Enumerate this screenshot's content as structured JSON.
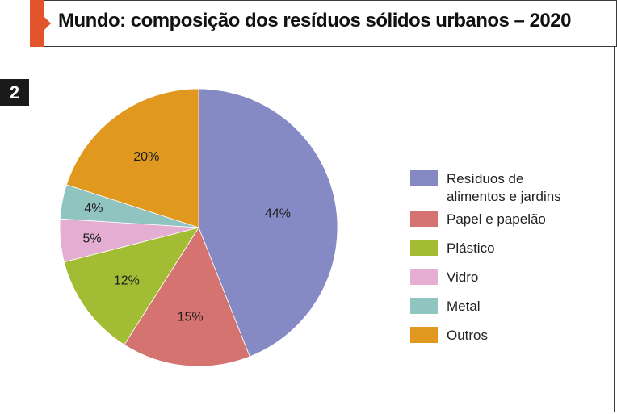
{
  "figure_number": "2",
  "title": "Mundo: composição dos resíduos sólidos urbanos – 2020",
  "colors": {
    "accent": "#e2542b",
    "residuos": "#8589c4",
    "papel": "#d4736f",
    "plastico": "#a2bc34",
    "vidro": "#e3aed1",
    "metal": "#8fc4c0",
    "outros": "#e0981e"
  },
  "chart_data": {
    "type": "pie",
    "title": "Mundo: composição dos resíduos sólidos urbanos – 2020",
    "unit": "%",
    "legend_position": "right",
    "slices": [
      {
        "label": "Resíduos de alimentos e jardins",
        "legend_lines": [
          "Resíduos de",
          "alimentos e jardins"
        ],
        "value": 44,
        "value_label": "44%",
        "color": "#8589c4"
      },
      {
        "label": "Papel e papelão",
        "legend_lines": [
          "Papel e papelão"
        ],
        "value": 15,
        "value_label": "15%",
        "color": "#d4736f"
      },
      {
        "label": "Plástico",
        "legend_lines": [
          "Plástico"
        ],
        "value": 12,
        "value_label": "12%",
        "color": "#a2bc34"
      },
      {
        "label": "Vidro",
        "legend_lines": [
          "Vidro"
        ],
        "value": 5,
        "value_label": "5%",
        "color": "#e3aed1"
      },
      {
        "label": "Metal",
        "legend_lines": [
          "Metal"
        ],
        "value": 4,
        "value_label": "4%",
        "color": "#8fc4c0"
      },
      {
        "label": "Outros",
        "legend_lines": [
          "Outros"
        ],
        "value": 20,
        "value_label": "20%",
        "color": "#e0981e"
      }
    ]
  }
}
